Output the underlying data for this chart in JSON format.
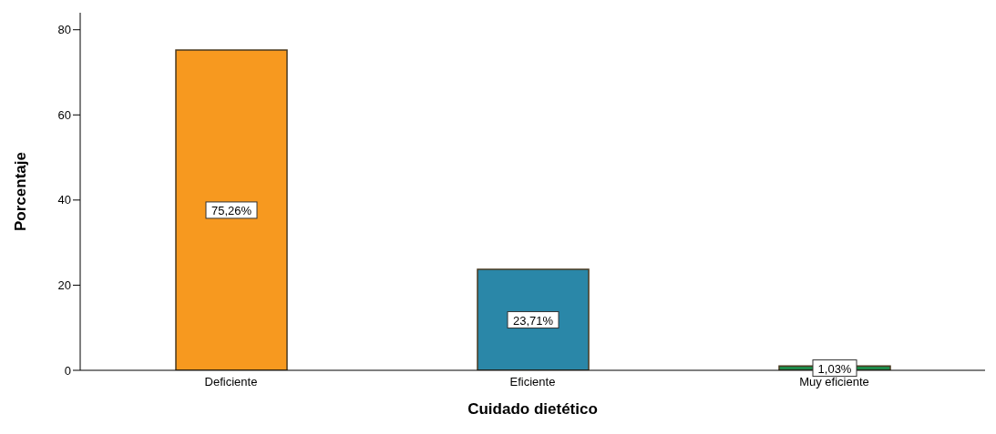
{
  "chart_data": {
    "type": "bar",
    "xlabel": "Cuidado dietético",
    "ylabel": "Porcentaje",
    "categories": [
      "Deficiente",
      "Eficiente",
      "Muy eficiente"
    ],
    "values": [
      75.26,
      23.71,
      1.03
    ],
    "colors": [
      "#f7991f",
      "#2a87a8",
      "#1e8a4a"
    ],
    "value_labels": [
      "75,26%",
      "23,71%",
      "1,03%"
    ],
    "ylim": [
      0,
      84
    ],
    "yticks": [
      0,
      20,
      40,
      60,
      80
    ],
    "grid": false,
    "legend": false
  }
}
